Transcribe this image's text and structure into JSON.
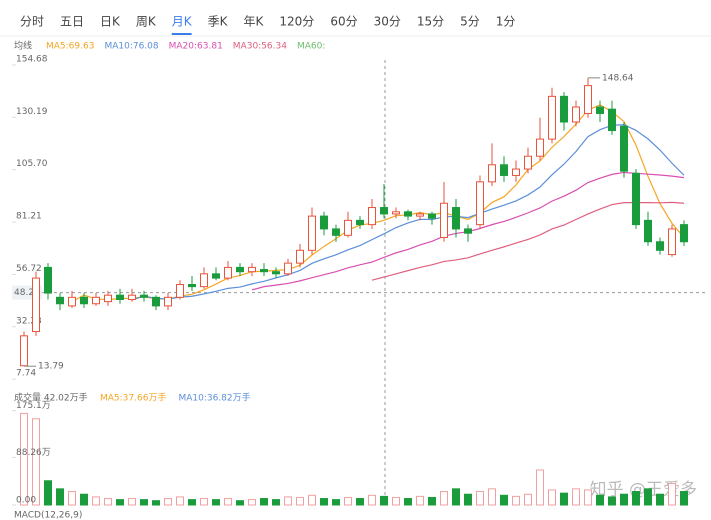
{
  "chart_data": {
    "type": "candlestick",
    "tabs": [
      "分时",
      "五日",
      "日K",
      "周K",
      "月K",
      "季K",
      "年K",
      "120分",
      "60分",
      "30分",
      "15分",
      "5分",
      "1分"
    ],
    "active_tab": 4,
    "ma_title": "均线",
    "ma_legend": [
      {
        "label": "MA5:69.63",
        "color": "#f5a623"
      },
      {
        "label": "MA10:76.08",
        "color": "#5b8fd9"
      },
      {
        "label": "MA20:63.81",
        "color": "#d94fb0"
      },
      {
        "label": "MA30:56.34",
        "color": "#e0607e"
      },
      {
        "label": "MA60:",
        "color": "#6cbf6c"
      }
    ],
    "ylim": [
      5,
      157
    ],
    "yticks": [
      {
        "value": 154.68,
        "label": "154.68"
      },
      {
        "value": 130.19,
        "label": "130.19"
      },
      {
        "value": 105.7,
        "label": "105.70"
      },
      81.21,
      56.72,
      32.23,
      7.74
    ],
    "up_color": "#e8533c",
    "down_color": "#1a9c3c",
    "crosshair": {
      "index": 30,
      "price": 48.21
    },
    "candles": [
      {
        "open": 14,
        "close": 28,
        "high": 30,
        "low": 13.79
      },
      {
        "open": 30,
        "close": 55,
        "high": 58,
        "low": 28
      },
      {
        "open": 60,
        "close": 48,
        "high": 62,
        "low": 45
      },
      {
        "open": 46,
        "close": 43,
        "high": 48,
        "low": 40
      },
      {
        "open": 42,
        "close": 46,
        "high": 49,
        "low": 41
      },
      {
        "open": 46,
        "close": 43,
        "high": 48,
        "low": 41
      },
      {
        "open": 43,
        "close": 46,
        "high": 48,
        "low": 42
      },
      {
        "open": 44,
        "close": 47,
        "high": 49,
        "low": 42
      },
      {
        "open": 47,
        "close": 45,
        "high": 50,
        "low": 43
      },
      {
        "open": 45,
        "close": 47,
        "high": 50,
        "low": 44
      },
      {
        "open": 47,
        "close": 46,
        "high": 49,
        "low": 44
      },
      {
        "open": 46,
        "close": 42,
        "high": 47,
        "low": 40
      },
      {
        "open": 42,
        "close": 46,
        "high": 48,
        "low": 40
      },
      {
        "open": 46,
        "close": 52,
        "high": 54,
        "low": 45
      },
      {
        "open": 52,
        "close": 51,
        "high": 56,
        "low": 49
      },
      {
        "open": 51,
        "close": 57,
        "high": 60,
        "low": 50
      },
      {
        "open": 57,
        "close": 55,
        "high": 60,
        "low": 54
      },
      {
        "open": 55,
        "close": 60,
        "high": 63,
        "low": 54
      },
      {
        "open": 60,
        "close": 58,
        "high": 62,
        "low": 56
      },
      {
        "open": 58,
        "close": 60,
        "high": 62,
        "low": 56
      },
      {
        "open": 59,
        "close": 58,
        "high": 62,
        "low": 56
      },
      {
        "open": 58,
        "close": 57,
        "high": 60,
        "low": 55
      },
      {
        "open": 57,
        "close": 62,
        "high": 64,
        "low": 56
      },
      {
        "open": 62,
        "close": 68,
        "high": 71,
        "low": 60
      },
      {
        "open": 68,
        "close": 84,
        "high": 88,
        "low": 66
      },
      {
        "open": 84,
        "close": 78,
        "high": 86,
        "low": 75
      },
      {
        "open": 78,
        "close": 75,
        "high": 80,
        "low": 72
      },
      {
        "open": 75,
        "close": 82,
        "high": 86,
        "low": 74
      },
      {
        "open": 82,
        "close": 80,
        "high": 84,
        "low": 78
      },
      {
        "open": 80,
        "close": 88,
        "high": 92,
        "low": 78
      },
      {
        "open": 88,
        "close": 85,
        "high": 99,
        "low": 83
      },
      {
        "open": 85,
        "close": 86,
        "high": 88,
        "low": 83
      },
      {
        "open": 86,
        "close": 84,
        "high": 87,
        "low": 82
      },
      {
        "open": 84,
        "close": 85,
        "high": 86,
        "low": 82
      },
      {
        "open": 85,
        "close": 83,
        "high": 86,
        "low": 80
      },
      {
        "open": 74,
        "close": 90,
        "high": 100,
        "low": 72
      },
      {
        "open": 88,
        "close": 78,
        "high": 92,
        "low": 74
      },
      {
        "open": 78,
        "close": 76,
        "high": 80,
        "low": 72
      },
      {
        "open": 80,
        "close": 100,
        "high": 103,
        "low": 78
      },
      {
        "open": 100,
        "close": 108,
        "high": 118,
        "low": 98
      },
      {
        "open": 108,
        "close": 103,
        "high": 112,
        "low": 100
      },
      {
        "open": 103,
        "close": 106,
        "high": 110,
        "low": 100
      },
      {
        "open": 106,
        "close": 112,
        "high": 116,
        "low": 104
      },
      {
        "open": 112,
        "close": 120,
        "high": 130,
        "low": 110
      },
      {
        "open": 120,
        "close": 140,
        "high": 144,
        "low": 118
      },
      {
        "open": 140,
        "close": 128,
        "high": 142,
        "low": 124
      },
      {
        "open": 128,
        "close": 135,
        "high": 138,
        "low": 126
      },
      {
        "open": 132,
        "close": 145,
        "high": 148.64,
        "low": 130
      },
      {
        "open": 135,
        "close": 132,
        "high": 138,
        "low": 128
      },
      {
        "open": 134,
        "close": 124,
        "high": 138,
        "low": 122
      },
      {
        "open": 126,
        "close": 105,
        "high": 128,
        "low": 102
      },
      {
        "open": 104,
        "close": 80,
        "high": 106,
        "low": 78
      },
      {
        "open": 82,
        "close": 72,
        "high": 86,
        "low": 70
      },
      {
        "open": 72,
        "close": 68,
        "high": 74,
        "low": 66
      },
      {
        "open": 66,
        "close": 78,
        "high": 80,
        "low": 65
      },
      {
        "open": 80,
        "close": 72,
        "high": 82,
        "low": 70
      }
    ],
    "high_index": 47,
    "low_index": 0,
    "ma_series": [
      {
        "name": "MA5",
        "color": "#f5a623",
        "values": [
          null,
          null,
          null,
          null,
          44,
          47,
          45.2,
          45,
          45.4,
          45.6,
          46.2,
          45.4,
          45.2,
          46.6,
          47.4,
          49.6,
          52.2,
          55,
          56.2,
          58,
          58.2,
          58.6,
          59,
          61,
          65.8,
          69.8,
          73.4,
          77.4,
          79.8,
          80.6,
          82,
          84.2,
          84.6,
          85.6,
          84.6,
          85.6,
          84,
          82.4,
          85.4,
          90.4,
          93,
          98.6,
          105.8,
          109.8,
          116.2,
          121.2,
          127,
          133.6,
          136,
          132.8,
          128.2,
          117.2,
          102.6,
          89.8,
          80.6,
          74
        ]
      },
      {
        "name": "MA10",
        "color": "#5b8fd9",
        "values": [
          null,
          null,
          null,
          null,
          null,
          null,
          null,
          null,
          null,
          44.8,
          46.6,
          45.5,
          45.2,
          46.1,
          46.5,
          47.6,
          48.8,
          50.2,
          50.8,
          52.3,
          53.5,
          55.1,
          56.6,
          58.6,
          61.9,
          64,
          65.9,
          68.2,
          70.2,
          73,
          75.7,
          78.6,
          80.8,
          82.5,
          82.4,
          83.6,
          83.9,
          83.3,
          85.3,
          87.3,
          89.1,
          91.1,
          93.9,
          97.6,
          103.3,
          108.3,
          114.2,
          121.2,
          124.4,
          126.5,
          126.7,
          124.1,
          120.1,
          114.9,
          108.7,
          103.1
        ]
      },
      {
        "name": "MA20",
        "color": "#d94fb0",
        "values": [
          null,
          null,
          null,
          null,
          null,
          null,
          null,
          null,
          null,
          null,
          null,
          null,
          null,
          null,
          null,
          null,
          null,
          null,
          null,
          49.5,
          51,
          51.7,
          52.5,
          53.7,
          55.2,
          56.6,
          58,
          59.8,
          61.2,
          62.5,
          64.7,
          66.8,
          68.4,
          70.5,
          72.2,
          74.6,
          75.9,
          76.7,
          78.2,
          80,
          81.5,
          83.4,
          85.5,
          87.8,
          91,
          93.3,
          96.1,
          99.7,
          101.7,
          103.5,
          104.4,
          104,
          103.6,
          103.2,
          102.7,
          102
        ]
      },
      {
        "name": "MA30",
        "color": "#e0607e",
        "values": [
          null,
          null,
          null,
          null,
          null,
          null,
          null,
          null,
          null,
          null,
          null,
          null,
          null,
          null,
          null,
          null,
          null,
          null,
          null,
          null,
          null,
          null,
          null,
          null,
          null,
          null,
          null,
          null,
          null,
          54,
          55.5,
          57,
          58.5,
          60,
          61.2,
          62.8,
          63.5,
          64.5,
          66.3,
          68,
          69.6,
          71.4,
          73.1,
          75.2,
          78,
          79.8,
          82.4,
          85,
          87.3,
          89.4,
          90.3,
          90.3,
          90.3,
          90.2,
          90.4,
          90
        ]
      }
    ],
    "volume_header": [
      "成交量 42.02万手",
      "MA5:37.66万手",
      "MA10:36.82万手"
    ],
    "volume_ylim": [
      0,
      180
    ],
    "volume_yticks": [
      {
        "value": 175.1,
        "label": "175.1万"
      },
      {
        "value": 88.26,
        "label": "88.26万"
      },
      {
        "value": 0,
        "label": "0.00"
      }
    ],
    "volume": [
      170,
      160,
      45,
      30,
      25,
      20,
      15,
      12,
      10,
      12,
      10,
      8,
      12,
      15,
      10,
      12,
      10,
      12,
      8,
      10,
      12,
      10,
      15,
      14,
      18,
      12,
      10,
      14,
      12,
      18,
      16,
      14,
      12,
      16,
      14,
      25,
      30,
      20,
      25,
      30,
      18,
      16,
      20,
      65,
      28,
      22,
      30,
      28,
      18,
      15,
      20,
      25,
      30,
      20,
      40,
      25
    ],
    "macd_label": "MACD(12,26,9)",
    "watermark": "知乎 @王爱多"
  }
}
